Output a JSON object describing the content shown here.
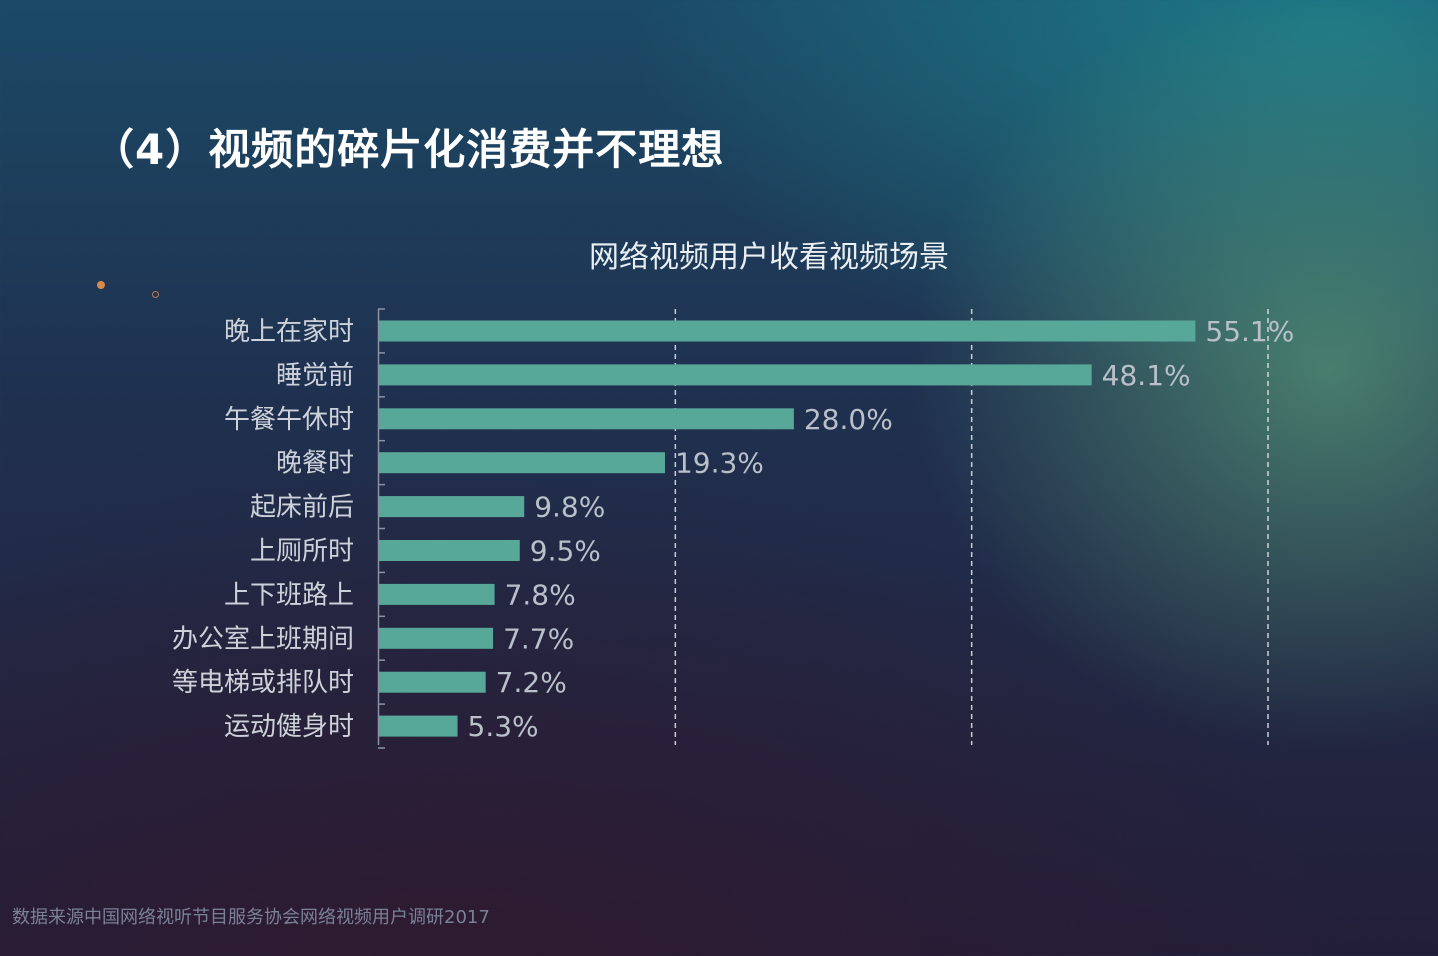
{
  "slide": {
    "title": "（4）视频的碎片化消费并不理想",
    "source": "数据来源中国网络视听节目服务协会网络视频用户调研2017"
  },
  "chart_data": {
    "type": "bar",
    "orientation": "horizontal",
    "title": "网络视频用户收看视频场景",
    "categories": [
      "晚上在家时",
      "睡觉前",
      "午餐午休时",
      "晚餐时",
      "起床前后",
      "上厕所时",
      "上下班路上",
      "办公室上班期间",
      "等电梯或排队时",
      "运动健身时"
    ],
    "values": [
      55.1,
      48.1,
      28.0,
      19.3,
      9.8,
      9.5,
      7.8,
      7.7,
      7.2,
      5.3
    ],
    "value_labels": [
      "55.1%",
      "48.1%",
      "28.0%",
      "19.3%",
      "9.8%",
      "9.5%",
      "7.8%",
      "7.7%",
      "7.2%",
      "5.3%"
    ],
    "unit": "%",
    "xlim": [
      0,
      60
    ],
    "gridlines": [
      20,
      40,
      60
    ],
    "grid": true,
    "legend": "none",
    "colors": {
      "bar": "#58a89a",
      "gridline": "#e8e8e8",
      "category_label": "#cdd2da",
      "value_label": "#b9c0c9",
      "axis": "#8a92a4"
    }
  }
}
